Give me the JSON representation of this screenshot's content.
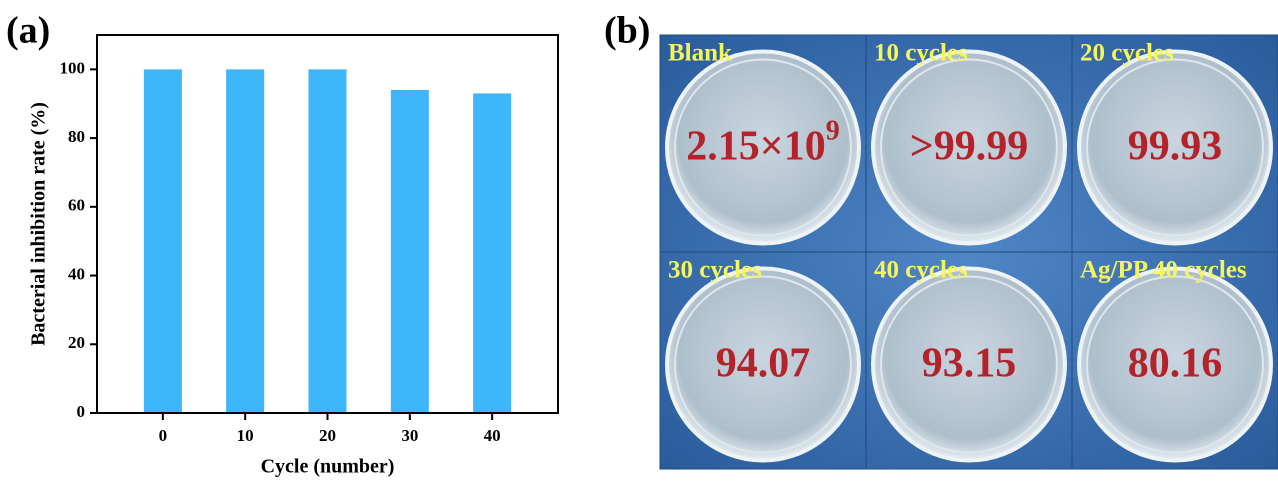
{
  "chart_data": {
    "type": "bar",
    "panel_label": "(a)",
    "x_label": "Cycle (number)",
    "y_label": "Bacterial inhibition rate (%)",
    "x": [
      0,
      10,
      20,
      30,
      40
    ],
    "values": [
      100,
      100,
      100,
      94,
      93
    ],
    "color": "#3fb6fb",
    "xlim": [
      -8,
      48
    ],
    "xticks": [
      0,
      10,
      20,
      30,
      40
    ],
    "ylim": [
      0,
      110
    ],
    "yticks": [
      0,
      20,
      40,
      60,
      80,
      100
    ]
  },
  "photo_panel": {
    "label": "(b)",
    "tiles": [
      {
        "caption": "Blank",
        "value": "2.15×10",
        "exponent": "9"
      },
      {
        "caption": "10 cycles",
        "value": ">99.99"
      },
      {
        "caption": "20 cycles",
        "value": "99.93"
      },
      {
        "caption": "30 cycles",
        "value": "94.07"
      },
      {
        "caption": "40 cycles",
        "value": "93.15"
      },
      {
        "caption": "Ag/PP 40 cycles",
        "value": "80.16"
      }
    ]
  }
}
